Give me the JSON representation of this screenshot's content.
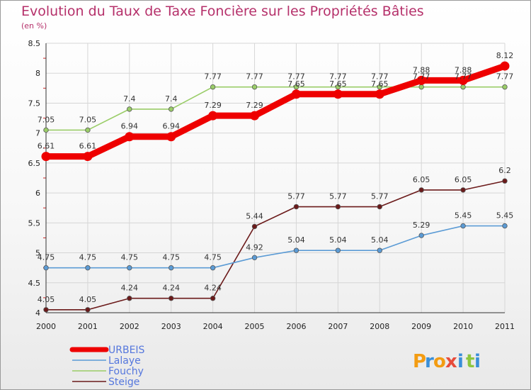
{
  "chart_data": {
    "type": "line",
    "title": "Evolution du Taux de Taxe Foncière sur les Propriétés Bâties",
    "subtitle": "(en %)",
    "x": [
      "2000",
      "2001",
      "2002",
      "2003",
      "2004",
      "2005",
      "2006",
      "2007",
      "2008",
      "2009",
      "2010",
      "2011"
    ],
    "ylim": [
      4,
      8.5
    ],
    "yticks": [
      "4",
      "4.5",
      "5",
      "5.5",
      "6",
      "6.5",
      "7",
      "7.5",
      "8",
      "8.5"
    ],
    "grid": true,
    "legend_position": "bottom-left",
    "series": [
      {
        "name": "Steige",
        "color": "#6b1a1a",
        "values": [
          4.05,
          4.05,
          4.24,
          4.24,
          4.24,
          5.44,
          5.77,
          5.77,
          5.77,
          6.05,
          6.05,
          6.2
        ],
        "labels": [
          "4.05",
          "4.05",
          "4.24",
          "4.24",
          "4.24",
          "5.44",
          "5.77",
          "5.77",
          "5.77",
          "6.05",
          "6.05",
          "6.2"
        ]
      },
      {
        "name": "Lalaye",
        "color": "#5b9bd5",
        "values": [
          4.75,
          4.75,
          4.75,
          4.75,
          4.75,
          4.92,
          5.04,
          5.04,
          5.04,
          5.29,
          5.45,
          5.45
        ],
        "labels": [
          "4.75",
          "4.75",
          "4.75",
          "4.75",
          "4.75",
          "4.92",
          "5.04",
          "5.04",
          "5.04",
          "5.29",
          "5.45",
          "5.45"
        ]
      },
      {
        "name": "Fouchy",
        "color": "#9acd68",
        "values": [
          7.05,
          7.05,
          7.4,
          7.4,
          7.77,
          7.77,
          7.77,
          7.77,
          7.77,
          7.77,
          7.77,
          7.77
        ],
        "labels": [
          "7.05",
          "7.05",
          "7.4",
          "7.4",
          "7.77",
          "7.77",
          "7.77",
          "7.77",
          "7.77",
          "7.77",
          "7.77",
          "7.77"
        ]
      },
      {
        "name": "URBEIS",
        "color": "#ee0000",
        "values": [
          6.61,
          6.61,
          6.94,
          6.94,
          7.29,
          7.29,
          7.65,
          7.65,
          7.65,
          7.88,
          7.88,
          8.12
        ],
        "labels": [
          "6.61",
          "6.61",
          "6.94",
          "6.94",
          "7.29",
          "7.29",
          "7.65",
          "7.65",
          "7.65",
          "7.88",
          "7.88",
          "8.12"
        ]
      }
    ],
    "legend": [
      {
        "name": "URBEIS",
        "color": "#ee0000",
        "text_color": "#5577dd",
        "thick": true
      },
      {
        "name": "Lalaye",
        "color": "#5b9bd5",
        "text_color": "#5577dd",
        "thick": false
      },
      {
        "name": "Fouchy",
        "color": "#9acd68",
        "text_color": "#5577dd",
        "thick": false
      },
      {
        "name": "Steige",
        "color": "#6b1a1a",
        "text_color": "#5577dd",
        "thick": false
      }
    ]
  },
  "logo": {
    "letters": [
      "P",
      "r",
      "o",
      "x",
      "i",
      "t",
      "i"
    ],
    "colors": [
      "#f39c12",
      "#3a8fd8",
      "#f39c12",
      "#e74c3c",
      "#3a8fd8",
      "#8dc63f",
      "#3a8fd8"
    ]
  }
}
